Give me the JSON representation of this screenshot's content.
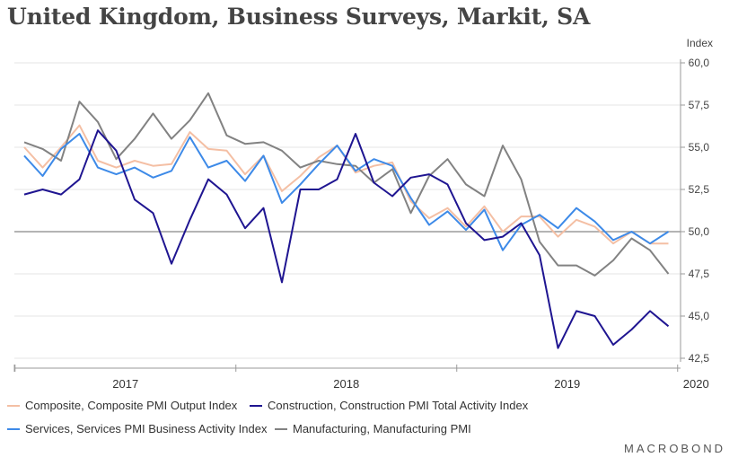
{
  "chart_data": {
    "type": "line",
    "title": "United Kingdom, Business Surveys, Markit, SA",
    "ylabel": "Index",
    "ylim": [
      42.5,
      60.0
    ],
    "yticks": [
      "60,0",
      "57,5",
      "55,0",
      "52,5",
      "50,0",
      "47,5",
      "45,0",
      "42,5"
    ],
    "ytick_values": [
      60.0,
      57.5,
      55.0,
      52.5,
      50.0,
      47.5,
      45.0,
      42.5
    ],
    "reference_line": 50.0,
    "grid": true,
    "legend_position": "bottom",
    "x_year_labels": [
      {
        "label": "2017",
        "month": 5.5
      },
      {
        "label": "2018",
        "month": 17.5
      },
      {
        "label": "2019",
        "month": 29.5
      },
      {
        "label": "2020",
        "month": 36.5
      }
    ],
    "x_year_ticks": [
      -0.5,
      11.5,
      23.5,
      35.5
    ],
    "x_start": "2016-07",
    "series": [
      {
        "name": "Composite, Composite PMI Output Index",
        "color": "#f4bfa4",
        "values": [
          55.0,
          53.8,
          55.0,
          56.3,
          54.2,
          53.8,
          54.2,
          53.9,
          54.0,
          55.9,
          54.9,
          54.8,
          53.4,
          54.5,
          52.4,
          53.3,
          54.4,
          55.1,
          53.5,
          53.9,
          54.1,
          51.8,
          50.8,
          51.4,
          50.3,
          51.5,
          50.0,
          50.9,
          50.9,
          49.7,
          50.7,
          50.3,
          49.3,
          50.0,
          49.3,
          49.3
        ]
      },
      {
        "name": "Construction, Construction PMI Total Activity Index",
        "color": "#1f1591",
        "values": [
          52.2,
          52.5,
          52.2,
          53.1,
          56.0,
          54.8,
          51.9,
          51.1,
          48.1,
          50.7,
          53.1,
          52.2,
          50.2,
          51.4,
          47.0,
          52.5,
          52.5,
          53.1,
          55.8,
          52.9,
          52.1,
          53.2,
          53.4,
          52.8,
          50.5,
          49.5,
          49.7,
          50.5,
          48.6,
          43.1,
          45.3,
          45.0,
          43.3,
          44.2,
          45.3,
          44.4
        ]
      },
      {
        "name": "Services, Services PMI Business Activity Index",
        "color": "#3d8ae8",
        "values": [
          54.5,
          53.3,
          54.9,
          55.8,
          53.8,
          53.4,
          53.8,
          53.2,
          53.6,
          55.6,
          53.8,
          54.2,
          53.0,
          54.5,
          51.7,
          52.8,
          54.0,
          55.1,
          53.6,
          54.3,
          53.9,
          52.0,
          50.4,
          51.2,
          50.1,
          51.3,
          48.9,
          50.4,
          51.0,
          50.2,
          51.4,
          50.6,
          49.5,
          50.0,
          49.3,
          50.0
        ]
      },
      {
        "name": "Manufacturing, Manufacturing PMI",
        "color": "#828282",
        "values": [
          55.3,
          54.9,
          54.2,
          57.7,
          56.5,
          54.3,
          55.5,
          57.0,
          55.5,
          56.6,
          58.2,
          55.7,
          55.2,
          55.3,
          54.8,
          53.8,
          54.2,
          54.0,
          53.9,
          52.9,
          53.7,
          51.1,
          53.3,
          54.3,
          52.8,
          52.1,
          55.1,
          53.1,
          49.4,
          48.0,
          48.0,
          47.4,
          48.3,
          49.6,
          48.9,
          47.5
        ]
      }
    ]
  },
  "branding": "MACROBOND"
}
